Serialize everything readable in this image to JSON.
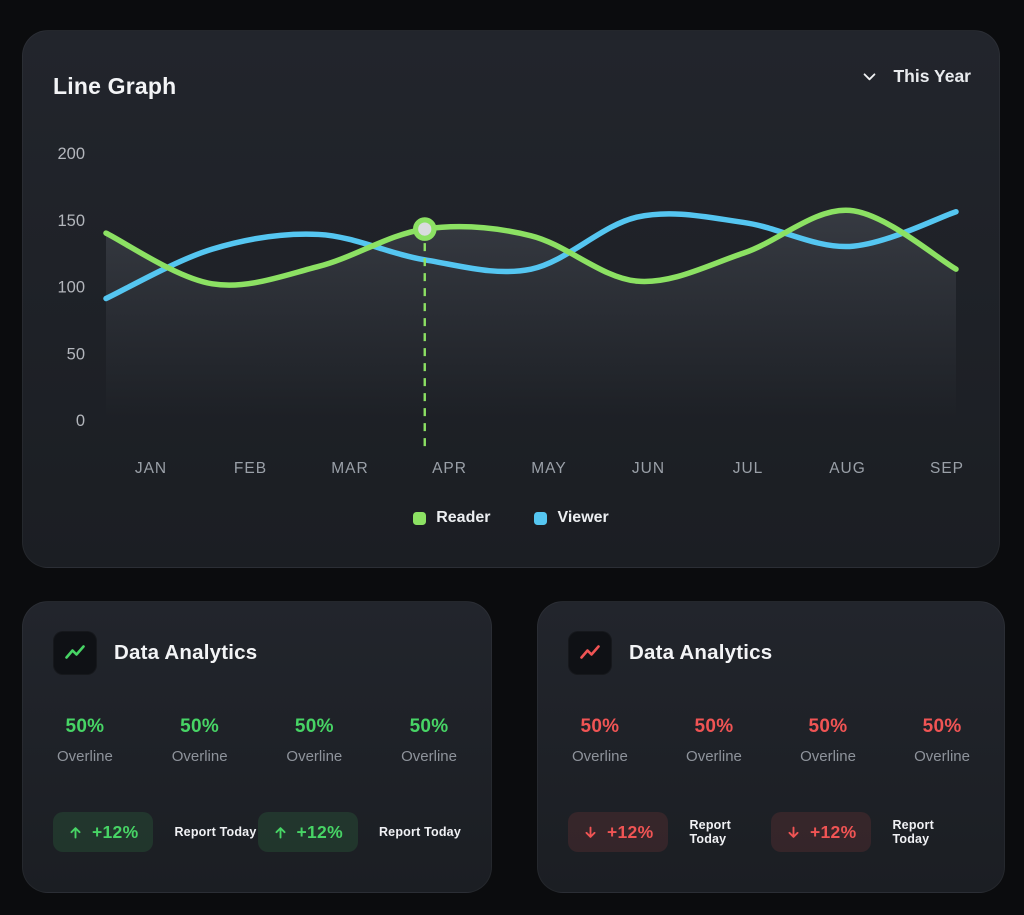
{
  "colors": {
    "page_bg": "#0b0c0e",
    "card_bg": "#1e2127",
    "reader_green": "#8ce163",
    "viewer_blue": "#55c6f1",
    "green_accent": "#47d465",
    "red_accent": "#f05454",
    "green_pill_bg": "rgba(71,212,101,0.13)",
    "red_pill_bg": "rgba(240,84,84,0.12)"
  },
  "line_graph_card": {
    "title": "Line Graph",
    "period_selector": {
      "label": "This Year",
      "icon": "chevron-down-icon"
    },
    "legend": [
      {
        "label": "Reader",
        "color": "#8ce163"
      },
      {
        "label": "Viewer",
        "color": "#55c6f1"
      }
    ]
  },
  "chart_data": {
    "type": "line",
    "title": "Line Graph",
    "x": [
      "JAN",
      "FEB",
      "MAR",
      "APR",
      "MAY",
      "JUN",
      "JUL",
      "AUG",
      "SEP"
    ],
    "series": [
      {
        "name": "Reader",
        "color": "#8ce163",
        "values": [
          140,
          102,
          115,
          143,
          138,
          104,
          125,
          157,
          113
        ]
      },
      {
        "name": "Viewer",
        "color": "#55c6f1",
        "values": [
          91,
          128,
          139,
          120,
          113,
          152,
          148,
          130,
          156
        ]
      }
    ],
    "ylim": [
      0,
      200
    ],
    "yticks": [
      0,
      50,
      100,
      150,
      200
    ],
    "xlabel": "",
    "ylabel": "",
    "grid": false,
    "legend_position": "bottom",
    "area_fill_under": "Reader",
    "highlight": {
      "series": "Reader",
      "x": "APR",
      "value": 143
    }
  },
  "analytics_cards": [
    {
      "title": "Data Analytics",
      "icon": "trend-up-icon",
      "accent": "#47d465",
      "pill_bg": "rgba(71,212,101,0.13)",
      "stats": [
        {
          "value": "50%",
          "label": "Overline"
        },
        {
          "value": "50%",
          "label": "Overline"
        },
        {
          "value": "50%",
          "label": "Overline"
        },
        {
          "value": "50%",
          "label": "Overline"
        }
      ],
      "badges": [
        {
          "delta": "+12%",
          "direction": "up",
          "label": "Report Today"
        },
        {
          "delta": "+12%",
          "direction": "up",
          "label": "Report Today"
        }
      ]
    },
    {
      "title": "Data Analytics",
      "icon": "trend-down-icon",
      "accent": "#f05454",
      "pill_bg": "rgba(240,84,84,0.12)",
      "stats": [
        {
          "value": "50%",
          "label": "Overline"
        },
        {
          "value": "50%",
          "label": "Overline"
        },
        {
          "value": "50%",
          "label": "Overline"
        },
        {
          "value": "50%",
          "label": "Overline"
        }
      ],
      "badges": [
        {
          "delta": "+12%",
          "direction": "down",
          "label": "Report Today"
        },
        {
          "delta": "+12%",
          "direction": "down",
          "label": "Report Today"
        }
      ]
    }
  ]
}
